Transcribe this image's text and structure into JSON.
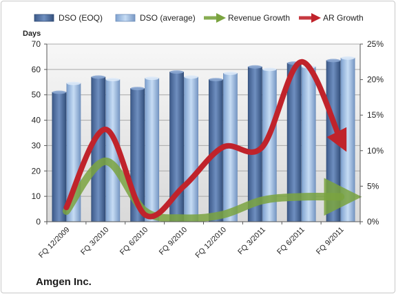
{
  "company": "Amgen Inc.",
  "chart_data": {
    "type": "bar",
    "title": "",
    "categories": [
      "FQ 12/2009",
      "FQ 3/2010",
      "FQ 6/2010",
      "FQ 9/2010",
      "FQ 12/2010",
      "FQ 3/2011",
      "FQ 6/2011",
      "FQ 9/2011"
    ],
    "series": [
      {
        "name": "DSO (EOQ)",
        "type": "bar",
        "axis": "left",
        "color": "#4f6fa0",
        "values": [
          51,
          57,
          52.5,
          59,
          56,
          61,
          62.5,
          63.5
        ]
      },
      {
        "name": "DSO (average)",
        "type": "bar",
        "axis": "left",
        "color": "#9ab8e0",
        "values": [
          54.5,
          56,
          56.5,
          57,
          58.5,
          60,
          61,
          64.5
        ]
      },
      {
        "name": "Revenue Growth",
        "type": "line",
        "axis": "right",
        "color": "#7aa33f",
        "values": [
          1.5,
          8.5,
          1.5,
          0.5,
          1,
          3,
          3.5,
          3.5
        ]
      },
      {
        "name": "AR Growth",
        "type": "line",
        "axis": "right",
        "color": "#c0232b",
        "values": [
          2,
          13,
          1,
          5,
          10.5,
          10.5,
          22.5,
          11.5
        ]
      }
    ],
    "ylabel": "Days",
    "ylim": [
      0,
      70
    ],
    "yticks": [
      0,
      10,
      20,
      30,
      40,
      50,
      60,
      70
    ],
    "y2lim": [
      0,
      25
    ],
    "y2ticks": [
      "0%",
      "5%",
      "10%",
      "15%",
      "20%",
      "25%"
    ],
    "legend_position": "top",
    "grid": true
  }
}
